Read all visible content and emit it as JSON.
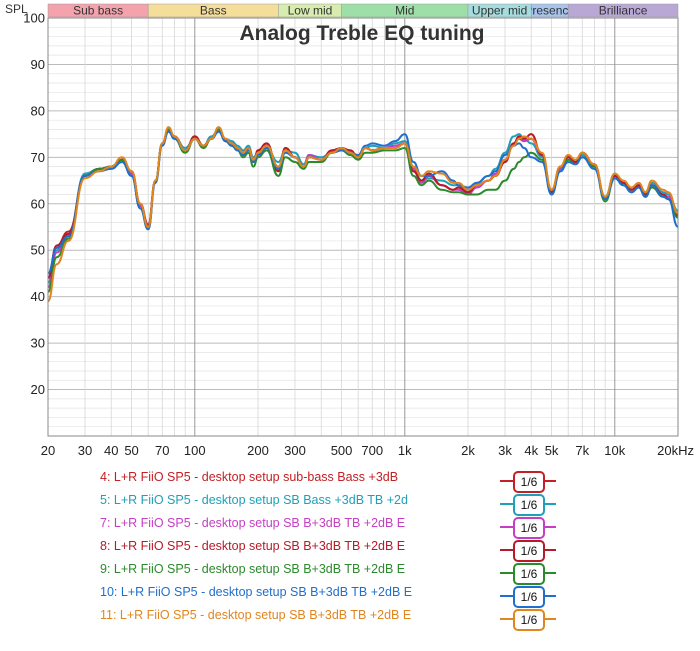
{
  "chart_data": {
    "type": "line",
    "title": "Analog Treble EQ tuning",
    "ylabel": "SPL",
    "xscale": "log",
    "xlim": [
      20,
      20000
    ],
    "ylim": [
      10,
      100
    ],
    "grid": true,
    "legend_position": "bottom",
    "y_ticks": [
      "100",
      "90",
      "80",
      "70",
      "60",
      "50",
      "40",
      "30",
      "20"
    ],
    "x_ticks": [
      "20",
      "30",
      "40",
      "50",
      "70",
      "100",
      "200",
      "300",
      "500",
      "700",
      "1k",
      "2k",
      "3k",
      "4k",
      "5k",
      "7k",
      "10k",
      "20kHz"
    ],
    "bands": [
      {
        "name": "Sub bass",
        "from": 20,
        "to": 60,
        "color": "#f4a3ad"
      },
      {
        "name": "Bass",
        "from": 60,
        "to": 250,
        "color": "#f5de9a"
      },
      {
        "name": "Low mid",
        "from": 250,
        "to": 500,
        "color": "#d7ecae"
      },
      {
        "name": "Mid",
        "from": 500,
        "to": 2000,
        "color": "#9ddfa6"
      },
      {
        "name": "Upper mid",
        "from": 2000,
        "to": 4000,
        "color": "#a6dcdc"
      },
      {
        "name": "Presence",
        "from": 4000,
        "to": 6000,
        "color": "#a9c4ec"
      },
      {
        "name": "Brilliance",
        "from": 6000,
        "to": 20000,
        "color": "#b9a8d6"
      }
    ],
    "series": [
      {
        "name": "4: L+R FiiO SP5 - desktop setup sub-bass Bass +3dB",
        "smoothing": "1/6",
        "color": "#c42026",
        "x": [
          20,
          22,
          25,
          30,
          35,
          40,
          45,
          50,
          55,
          60,
          65,
          70,
          75,
          80,
          90,
          100,
          110,
          120,
          130,
          140,
          150,
          160,
          170,
          180,
          190,
          200,
          220,
          250,
          270,
          300,
          330,
          350,
          400,
          450,
          500,
          550,
          600,
          650,
          700,
          800,
          900,
          1000,
          1100,
          1200,
          1300,
          1500,
          1700,
          1800,
          2000,
          2200,
          2500,
          2700,
          3000,
          3300,
          3500,
          3700,
          4000,
          4500,
          5000,
          5500,
          6000,
          6500,
          7000,
          8000,
          9000,
          10000,
          11000,
          12000,
          13000,
          14000,
          15000,
          17000,
          18000,
          20000
        ],
        "values": [
          44,
          51,
          54,
          66,
          67.5,
          68,
          69.5,
          67,
          60,
          55.5,
          65,
          73,
          76,
          74.5,
          71.5,
          74.5,
          72.5,
          74,
          76,
          73.5,
          73,
          72,
          71,
          72,
          69,
          71.5,
          73,
          67,
          72,
          70,
          68,
          70,
          69.5,
          71.5,
          72,
          71.5,
          70,
          72,
          71.5,
          72,
          72,
          73,
          67,
          65,
          66.5,
          64,
          63,
          63.5,
          62.5,
          64,
          65,
          66,
          69,
          73,
          74,
          73.5,
          74,
          70.5,
          62.5,
          68,
          70,
          69,
          71,
          68.5,
          61,
          66,
          64.5,
          63,
          64,
          62,
          64,
          62,
          61,
          57.5
        ]
      },
      {
        "name": "5: L+R FiiO SP5 - desktop setup SB Bass +3dB TB +2d",
        "smoothing": "1/6",
        "color": "#1ea0b8",
        "x": [
          20,
          22,
          25,
          30,
          35,
          40,
          45,
          50,
          55,
          60,
          65,
          70,
          75,
          80,
          90,
          100,
          110,
          120,
          130,
          140,
          150,
          160,
          170,
          180,
          190,
          200,
          220,
          250,
          270,
          300,
          330,
          350,
          400,
          450,
          500,
          550,
          600,
          650,
          700,
          800,
          900,
          1000,
          1100,
          1200,
          1300,
          1500,
          1700,
          1800,
          2000,
          2200,
          2500,
          2700,
          3000,
          3300,
          3500,
          3700,
          4000,
          4500,
          5000,
          5500,
          6000,
          6500,
          7000,
          8000,
          9000,
          10000,
          11000,
          12000,
          13000,
          14000,
          15000,
          17000,
          18000,
          20000
        ],
        "values": [
          43,
          50,
          53.5,
          66.5,
          67.5,
          68,
          69.5,
          66.5,
          59.5,
          55,
          65,
          73,
          76,
          74.5,
          72,
          74,
          72.5,
          74.5,
          76,
          74,
          73.5,
          72.5,
          71.5,
          72.5,
          70,
          71,
          72,
          69,
          71.5,
          71,
          68.5,
          70.5,
          70,
          71,
          72,
          71,
          70,
          72,
          72.5,
          72,
          73,
          73.5,
          68,
          65,
          65.5,
          65,
          64,
          64,
          63,
          64.5,
          66,
          67.5,
          71,
          74.5,
          75,
          74,
          73,
          70,
          63,
          67.5,
          70,
          69,
          70.5,
          68,
          61.5,
          66.5,
          64.5,
          63,
          64,
          62.5,
          64.5,
          62.5,
          62,
          58.5
        ]
      },
      {
        "name": "7: L+R FiiO SP5 - desktop setup SB B+3dB TB +2dB E",
        "smoothing": "1/6",
        "color": "#c43fc4",
        "x": [
          20,
          22,
          25,
          30,
          35,
          40,
          45,
          50,
          55,
          60,
          65,
          70,
          75,
          80,
          90,
          100,
          110,
          120,
          130,
          140,
          150,
          160,
          170,
          180,
          190,
          200,
          220,
          250,
          270,
          300,
          330,
          350,
          400,
          450,
          500,
          550,
          600,
          650,
          700,
          800,
          900,
          1000,
          1100,
          1200,
          1300,
          1500,
          1700,
          1800,
          2000,
          2200,
          2500,
          2700,
          3000,
          3300,
          3500,
          3700,
          4000,
          4500,
          5000,
          5500,
          6000,
          6500,
          7000,
          8000,
          9000,
          10000,
          11000,
          12000,
          13000,
          14000,
          15000,
          17000,
          18000,
          20000
        ],
        "values": [
          42,
          49.5,
          53,
          66,
          67.5,
          68,
          69.5,
          66.5,
          59.5,
          55,
          65,
          73,
          76,
          74.5,
          71.5,
          74,
          72.5,
          74,
          76,
          73.5,
          73,
          72,
          71,
          72,
          69.5,
          71,
          72.5,
          67.5,
          71.5,
          70,
          68,
          70.5,
          69.5,
          71,
          72,
          71,
          70,
          72,
          71.5,
          72,
          72.5,
          73,
          67.5,
          64.5,
          66,
          64,
          63,
          63,
          62,
          63.5,
          65,
          66.5,
          69.5,
          73,
          74.5,
          73.5,
          74,
          70.5,
          62.5,
          67.5,
          70,
          69,
          71,
          68.5,
          61,
          66,
          64.5,
          63,
          64,
          62,
          64,
          62,
          61.5,
          58
        ]
      },
      {
        "name": "8: L+R FiiO SP5 - desktop setup SB B+3dB TB +2dB E",
        "smoothing": "1/6",
        "color": "#b51b28",
        "x": [
          20,
          22,
          25,
          30,
          35,
          40,
          45,
          50,
          55,
          60,
          65,
          70,
          75,
          80,
          90,
          100,
          110,
          120,
          130,
          140,
          150,
          160,
          170,
          180,
          190,
          200,
          220,
          250,
          270,
          300,
          330,
          350,
          400,
          450,
          500,
          550,
          600,
          650,
          700,
          800,
          900,
          1000,
          1100,
          1200,
          1300,
          1500,
          1700,
          1800,
          2000,
          2200,
          2500,
          2700,
          3000,
          3300,
          3500,
          3700,
          4000,
          4500,
          5000,
          5500,
          6000,
          6500,
          7000,
          8000,
          9000,
          10000,
          11000,
          12000,
          13000,
          14000,
          15000,
          17000,
          18000,
          20000
        ],
        "values": [
          44,
          51,
          53.5,
          66,
          67.5,
          68,
          69.5,
          67,
          60,
          55.5,
          65,
          73,
          76,
          74.5,
          71.5,
          74.5,
          72.5,
          74,
          76,
          73.5,
          73,
          72,
          71,
          72,
          69,
          71.5,
          73,
          67,
          72,
          70,
          68,
          70,
          69.5,
          71.5,
          72,
          71.5,
          70,
          72,
          71.5,
          72,
          72,
          73,
          67,
          65,
          66.5,
          64,
          63,
          63.5,
          62.5,
          64,
          65,
          66,
          69,
          73,
          74.5,
          74,
          75,
          70.5,
          62.5,
          68,
          70,
          69,
          71,
          68.5,
          61,
          66,
          64.5,
          63,
          64,
          62,
          64,
          62,
          61,
          57.5
        ]
      },
      {
        "name": "9: L+R FiiO SP5 - desktop setup SB B+3dB TB +2dB E",
        "smoothing": "1/6",
        "color": "#2b8a2b",
        "x": [
          20,
          22,
          25,
          30,
          35,
          40,
          45,
          50,
          55,
          60,
          65,
          70,
          75,
          80,
          90,
          100,
          110,
          120,
          130,
          140,
          150,
          160,
          170,
          180,
          190,
          200,
          220,
          250,
          270,
          300,
          330,
          350,
          400,
          450,
          500,
          550,
          600,
          650,
          700,
          800,
          900,
          1000,
          1100,
          1200,
          1300,
          1500,
          1700,
          1800,
          2000,
          2200,
          2500,
          2700,
          3000,
          3300,
          3500,
          3700,
          4000,
          4500,
          5000,
          5500,
          6000,
          6500,
          7000,
          8000,
          9000,
          10000,
          11000,
          12000,
          13000,
          14000,
          15000,
          17000,
          18000,
          20000
        ],
        "values": [
          41,
          48.5,
          52.5,
          66,
          67.5,
          68,
          69.5,
          66,
          59,
          54.5,
          65,
          73,
          76,
          74,
          71,
          74,
          72,
          74,
          76,
          73.5,
          72.5,
          71.5,
          70,
          71,
          68,
          70,
          71.5,
          66,
          70,
          69,
          67.5,
          69,
          69,
          71,
          71.5,
          70.5,
          69.5,
          71,
          71,
          71.5,
          71.5,
          72,
          66,
          64,
          65,
          63,
          62.5,
          62.5,
          62,
          62,
          63,
          63,
          65,
          67.5,
          69,
          70,
          71,
          69.5,
          62,
          67,
          69.5,
          68.5,
          70,
          68,
          60.5,
          65.5,
          64,
          62.5,
          63.5,
          61.5,
          63.5,
          61.5,
          61,
          57
        ]
      },
      {
        "name": "10: L+R FiiO SP5 - desktop setup SB B+3dB TB +2dB E",
        "smoothing": "1/6",
        "color": "#1f6fcf",
        "x": [
          20,
          22,
          25,
          30,
          35,
          40,
          45,
          50,
          55,
          60,
          65,
          70,
          75,
          80,
          90,
          100,
          110,
          120,
          130,
          140,
          150,
          160,
          170,
          180,
          190,
          200,
          220,
          250,
          270,
          300,
          330,
          350,
          400,
          450,
          500,
          550,
          600,
          650,
          700,
          800,
          900,
          1000,
          1100,
          1200,
          1300,
          1500,
          1700,
          1800,
          2000,
          2200,
          2500,
          2700,
          3000,
          3300,
          3500,
          3700,
          4000,
          4500,
          5000,
          5500,
          6000,
          6500,
          7000,
          8000,
          9000,
          10000,
          11000,
          12000,
          13000,
          14000,
          15000,
          17000,
          18000,
          20000
        ],
        "values": [
          45,
          50.5,
          53,
          66,
          67,
          67.5,
          69,
          66,
          59,
          54.5,
          64.5,
          72.5,
          75.5,
          74,
          71.5,
          74,
          72.5,
          74,
          75.5,
          73.5,
          72.5,
          71.5,
          70.5,
          71.5,
          69,
          70.5,
          72,
          67.5,
          71,
          70,
          68,
          70,
          69.5,
          71,
          71.5,
          71,
          70.5,
          72.5,
          73,
          72.5,
          73.5,
          75,
          69,
          66,
          66,
          67,
          65,
          64,
          63.5,
          64.5,
          66,
          67,
          70.5,
          72.5,
          73,
          72,
          70,
          69,
          62,
          67,
          69,
          68.5,
          70,
          67.5,
          61,
          65.5,
          64,
          62.5,
          63.5,
          61.5,
          64,
          61.5,
          61,
          55
        ]
      },
      {
        "name": "11: L+R FiiO SP5 - desktop setup SB B+3dB TB +2dB E",
        "smoothing": "1/6",
        "color": "#e0861e",
        "x": [
          20,
          22,
          25,
          30,
          35,
          40,
          45,
          50,
          55,
          60,
          65,
          70,
          75,
          80,
          90,
          100,
          110,
          120,
          130,
          140,
          150,
          160,
          170,
          180,
          190,
          200,
          220,
          250,
          270,
          300,
          330,
          350,
          400,
          450,
          500,
          550,
          600,
          650,
          700,
          800,
          900,
          1000,
          1100,
          1200,
          1300,
          1500,
          1700,
          1800,
          2000,
          2200,
          2500,
          2700,
          3000,
          3300,
          3500,
          3700,
          4000,
          4500,
          5000,
          5500,
          6000,
          6500,
          7000,
          8000,
          9000,
          10000,
          11000,
          12000,
          13000,
          14000,
          15000,
          17000,
          18000,
          20000
        ],
        "values": [
          39,
          47,
          52,
          65.5,
          67,
          68,
          70,
          67,
          60,
          55,
          65,
          73,
          76.5,
          74.5,
          71.5,
          74,
          72.5,
          74,
          76.5,
          74,
          73,
          72,
          71,
          72,
          69.5,
          71,
          72.5,
          68,
          71.5,
          70,
          68,
          70,
          69.5,
          71,
          72,
          71,
          70,
          72,
          71.5,
          72,
          72,
          73,
          68,
          66,
          67,
          66.5,
          64.5,
          64.5,
          63,
          64,
          65,
          66,
          69.5,
          72.5,
          74,
          74.5,
          74,
          71,
          63,
          68,
          70.5,
          69.5,
          71,
          68.5,
          61.5,
          66.5,
          65,
          63.5,
          64.5,
          62.5,
          65,
          63,
          62.5,
          58
        ]
      }
    ]
  },
  "legend": {
    "items": [
      {
        "label": "4: L+R FiiO SP5 - desktop setup sub-bass Bass +3dB",
        "color": "#c42026",
        "badge": "1/6"
      },
      {
        "label": "5: L+R FiiO SP5 - desktop setup SB Bass +3dB TB +2d",
        "color": "#1ea0b8",
        "badge": "1/6"
      },
      {
        "label": "7: L+R FiiO SP5 - desktop setup SB B+3dB TB +2dB E",
        "color": "#c43fc4",
        "badge": "1/6"
      },
      {
        "label": "8: L+R FiiO SP5 - desktop setup SB B+3dB TB +2dB E",
        "color": "#b51b28",
        "badge": "1/6"
      },
      {
        "label": "9: L+R FiiO SP5 - desktop setup SB B+3dB TB +2dB E",
        "color": "#2b8a2b",
        "badge": "1/6"
      },
      {
        "label": "10: L+R FiiO SP5 - desktop setup SB B+3dB TB +2dB E",
        "color": "#1f6fcf",
        "badge": "1/6"
      },
      {
        "label": "11: L+R FiiO SP5 - desktop setup SB B+3dB TB +2dB E",
        "color": "#e0861e",
        "badge": "1/6"
      }
    ]
  }
}
